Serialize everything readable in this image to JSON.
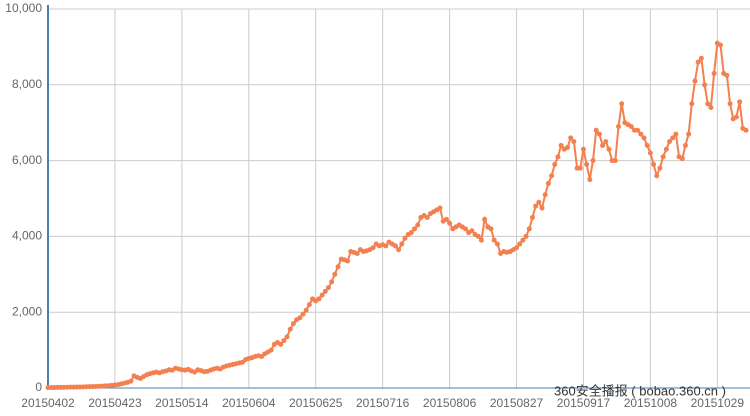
{
  "chart_data": {
    "type": "line",
    "watermark": "360安全播报 ( bobao.360.cn )",
    "color": "#f47f4f",
    "grid": true,
    "ylim": [
      0,
      10000
    ],
    "yticks": [
      0,
      {
        "value": 2000,
        "label": "2,000"
      },
      {
        "value": 4000,
        "label": "4,000"
      },
      {
        "value": 6000,
        "label": "6,000"
      },
      {
        "value": 8000,
        "label": "8,000"
      },
      {
        "value": 10000,
        "label": "10,000"
      }
    ],
    "categories": [
      "20150402",
      null,
      null,
      null,
      null,
      null,
      null,
      null,
      null,
      null,
      null,
      null,
      null,
      null,
      null,
      null,
      null,
      null,
      null,
      null,
      null,
      "20150423",
      null,
      null,
      null,
      null,
      null,
      null,
      null,
      null,
      null,
      null,
      null,
      null,
      null,
      null,
      null,
      null,
      null,
      null,
      null,
      null,
      "20150514",
      null,
      null,
      null,
      null,
      null,
      null,
      null,
      null,
      null,
      null,
      null,
      null,
      null,
      null,
      null,
      null,
      null,
      null,
      null,
      null,
      "20150604",
      null,
      null,
      null,
      null,
      null,
      null,
      null,
      null,
      null,
      null,
      null,
      null,
      null,
      null,
      null,
      null,
      null,
      null,
      null,
      null,
      "20150625",
      null,
      null,
      null,
      null,
      null,
      null,
      null,
      null,
      null,
      null,
      null,
      null,
      null,
      null,
      null,
      null,
      null,
      null,
      null,
      null,
      "20150716",
      null,
      null,
      null,
      null,
      null,
      null,
      null,
      null,
      null,
      null,
      null,
      null,
      null,
      null,
      null,
      null,
      null,
      null,
      null,
      null,
      "20150806",
      null,
      null,
      null,
      null,
      null,
      null,
      null,
      null,
      null,
      null,
      null,
      null,
      null,
      null,
      null,
      null,
      null,
      null,
      null,
      null,
      "20150827",
      null,
      null,
      null,
      null,
      null,
      null,
      null,
      null,
      null,
      null,
      null,
      null,
      null,
      null,
      null,
      null,
      null,
      null,
      null,
      null,
      "20150917",
      null,
      null,
      null,
      null,
      null,
      null,
      null,
      null,
      null,
      null,
      null,
      null,
      null,
      null,
      null,
      null,
      null,
      null,
      null,
      null,
      "20151008",
      null,
      null,
      null,
      null,
      null,
      null,
      null,
      null,
      null,
      null,
      null,
      null,
      null,
      null,
      null,
      null,
      null,
      null,
      null,
      null,
      "20151029",
      null,
      null,
      null,
      null,
      null,
      null,
      null,
      null,
      null
    ],
    "values": [
      10,
      12,
      14,
      15,
      17,
      18,
      20,
      22,
      24,
      25,
      27,
      30,
      32,
      35,
      38,
      40,
      45,
      50,
      55,
      60,
      70,
      80,
      90,
      110,
      130,
      150,
      180,
      320,
      280,
      250,
      300,
      350,
      380,
      400,
      420,
      400,
      430,
      450,
      480,
      470,
      520,
      500,
      480,
      470,
      490,
      450,
      420,
      480,
      460,
      430,
      440,
      470,
      500,
      520,
      500,
      550,
      580,
      600,
      620,
      640,
      660,
      680,
      750,
      780,
      800,
      830,
      850,
      830,
      900,
      950,
      1000,
      1150,
      1200,
      1150,
      1250,
      1350,
      1550,
      1700,
      1800,
      1850,
      1950,
      2050,
      2200,
      2350,
      2300,
      2350,
      2450,
      2550,
      2650,
      2800,
      3000,
      3200,
      3400,
      3380,
      3350,
      3600,
      3580,
      3550,
      3650,
      3600,
      3620,
      3650,
      3700,
      3800,
      3750,
      3780,
      3750,
      3850,
      3800,
      3750,
      3650,
      3800,
      3950,
      4050,
      4100,
      4200,
      4300,
      4500,
      4550,
      4500,
      4600,
      4650,
      4700,
      4750,
      4400,
      4450,
      4350,
      4200,
      4250,
      4300,
      4250,
      4200,
      4100,
      4150,
      4050,
      4000,
      3900,
      4450,
      4250,
      4200,
      3900,
      3800,
      3550,
      3600,
      3580,
      3600,
      3650,
      3700,
      3800,
      3900,
      4000,
      4200,
      4500,
      4800,
      4900,
      4750,
      5100,
      5400,
      5600,
      5900,
      6100,
      6400,
      6300,
      6350,
      6600,
      6500,
      5800,
      5800,
      6300,
      5900,
      5500,
      6000,
      6800,
      6700,
      6400,
      6500,
      6300,
      6000,
      6000,
      6900,
      7500,
      7000,
      6950,
      6900,
      6800,
      6800,
      6700,
      6600,
      6400,
      6200,
      5900,
      5600,
      5800,
      6100,
      6300,
      6500,
      6600,
      6700,
      6100,
      6050,
      6400,
      6700,
      7500,
      8100,
      8600,
      8700,
      8000,
      7500,
      7400,
      8300,
      9100,
      9050,
      8300,
      8250,
      7500,
      7100,
      7150,
      7550,
      6850,
      6800
    ]
  }
}
